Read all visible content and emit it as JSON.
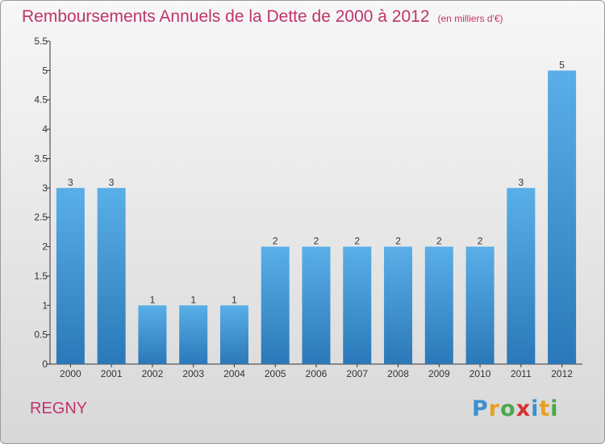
{
  "chart_data": {
    "type": "bar",
    "title": "Remboursements Annuels de la Dette de 2000 à 2012",
    "subtitle": "(en milliers d'€)",
    "categories": [
      "2000",
      "2001",
      "2002",
      "2003",
      "2004",
      "2005",
      "2006",
      "2007",
      "2008",
      "2009",
      "2010",
      "2011",
      "2012"
    ],
    "values": [
      3,
      3,
      1,
      1,
      1,
      2,
      2,
      2,
      2,
      2,
      2,
      3,
      5
    ],
    "data_labels": [
      "3",
      "3",
      "1",
      "1",
      "1",
      "2",
      "2",
      "2",
      "2",
      "2",
      "2",
      "3",
      "5"
    ],
    "ylim": [
      0,
      5.5
    ],
    "yticks": [
      "0",
      "0.5",
      "1",
      "1.5",
      "2",
      "2.5",
      "3",
      "3.5",
      "4",
      "4.5",
      "5",
      "5.5"
    ],
    "grid": false,
    "legend": "none",
    "bar_color_top": "#5aafe8",
    "bar_color_bottom": "#2a78b8"
  },
  "place": "REGNY",
  "brand": {
    "letters": [
      "P",
      "r",
      "o",
      "x",
      "i",
      "t",
      "i"
    ],
    "colors": [
      "#3a8fd0",
      "#e8a020",
      "#4aa84a",
      "#d83030",
      "#3a8fd0",
      "#e8a020",
      "#4aa84a"
    ]
  },
  "colors": {
    "title": "#c0346c",
    "axis": "#333333"
  }
}
